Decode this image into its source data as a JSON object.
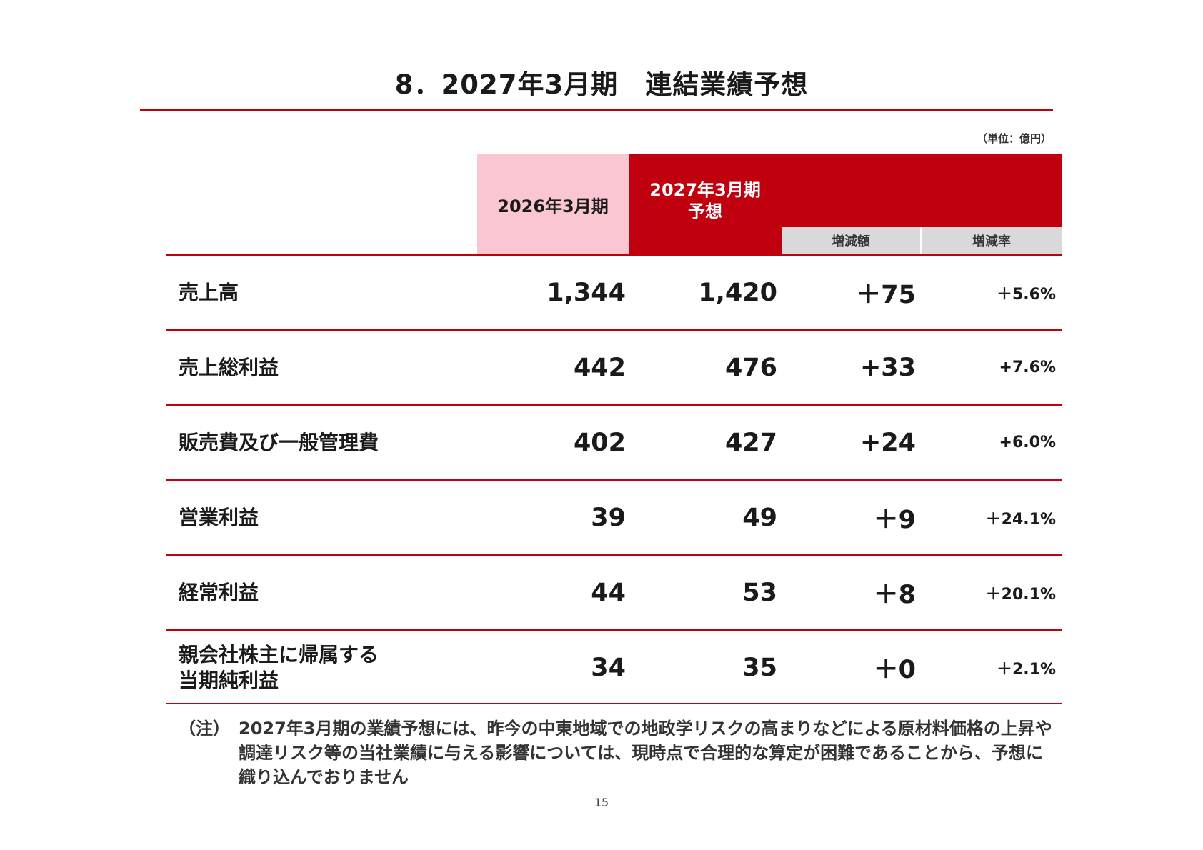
{
  "title": "8．2027年3月期　連結業績予想",
  "unit": "（単位：億円）",
  "header": {
    "prev_period": "2026年3月期",
    "forecast_line1": "2027年3月期",
    "forecast_line2": "予想",
    "change_amount": "増減額",
    "change_rate": "増減率"
  },
  "rows": [
    {
      "label": "売上高",
      "prev": "1,344",
      "forecast": "1,420",
      "change": "＋75",
      "rate": "＋5.6%"
    },
    {
      "label": "売上総利益",
      "prev": "442",
      "forecast": "476",
      "change": "+33",
      "rate": "+7.6%"
    },
    {
      "label": "販売費及び一般管理費",
      "prev": "402",
      "forecast": "427",
      "change": "+24",
      "rate": "+6.0%"
    },
    {
      "label": "営業利益",
      "prev": "39",
      "forecast": "49",
      "change": "＋9",
      "rate": "＋24.1%"
    },
    {
      "label": "経常利益",
      "prev": "44",
      "forecast": "53",
      "change": "＋8",
      "rate": "＋20.1%"
    },
    {
      "label_line1": "親会社株主に帰属する",
      "label_line2": "当期純利益",
      "prev": "34",
      "forecast": "35",
      "change": "＋0",
      "rate": "＋2.1%"
    }
  ],
  "note": {
    "label": "（注）",
    "text": "2027年3月期の業績予想には、昨今の中東地域での地政学リスクの高まりなどによる原材料価格の上昇や調達リスク等の当社業績に与える影響については、現時点で合理的な算定が困難であることから、予想に織り込んでおりません"
  },
  "page_number": "15",
  "colors": {
    "accent_red": "#c0000f",
    "prev_header_pink": "#f9c6d2",
    "sub_header_gray": "#d9d9d9"
  }
}
